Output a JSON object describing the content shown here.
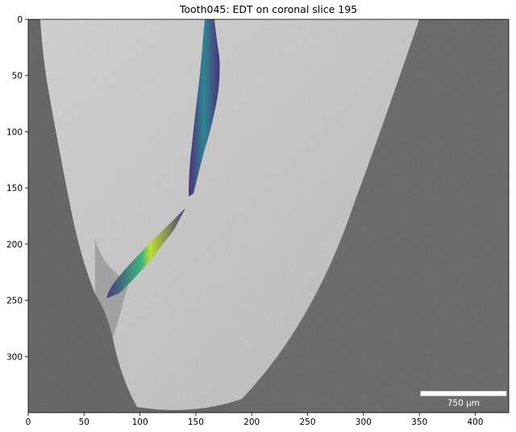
{
  "chart_data": {
    "type": "image",
    "title": "Tooth045: EDT on coronal slice 195",
    "xlabel": "",
    "ylabel": "",
    "xlim": [
      0,
      430
    ],
    "ylim": [
      350,
      0
    ],
    "xticks": [
      0,
      50,
      100,
      150,
      200,
      250,
      300,
      350,
      400
    ],
    "yticks": [
      0,
      50,
      100,
      150,
      200,
      250,
      300
    ],
    "grid": false,
    "legend": "none",
    "colormap": "viridis",
    "scalebar": {
      "label": "750 μm",
      "x_start": 351,
      "x_end": 428,
      "y": 333,
      "color": "#ffffff"
    },
    "edt_overlay": {
      "description_values": "distance-transform overlay along a root canal; path points in data coordinates (x, y) with approximate local canal half-width",
      "upper_canal": [
        {
          "x": 160,
          "y": 0,
          "half_width": 5
        },
        {
          "x": 162,
          "y": 30,
          "half_width": 8
        },
        {
          "x": 158,
          "y": 70,
          "half_width": 10
        },
        {
          "x": 154,
          "y": 110,
          "half_width": 10
        },
        {
          "x": 150,
          "y": 140,
          "half_width": 7
        },
        {
          "x": 147,
          "y": 160,
          "half_width": 3
        }
      ],
      "lower_canal": [
        {
          "x": 140,
          "y": 168,
          "half_width": 3
        },
        {
          "x": 130,
          "y": 185,
          "half_width": 7
        },
        {
          "x": 115,
          "y": 210,
          "half_width": 11
        },
        {
          "x": 98,
          "y": 230,
          "half_width": 10
        },
        {
          "x": 82,
          "y": 244,
          "half_width": 7
        },
        {
          "x": 71,
          "y": 249,
          "half_width": 3
        }
      ]
    },
    "colors": {
      "background_dark": "#5a5a5a",
      "tissue_light": "#c6c6c6",
      "viridis_low": "#440154",
      "viridis_mid": "#21908d",
      "viridis_high": "#fde725"
    }
  }
}
